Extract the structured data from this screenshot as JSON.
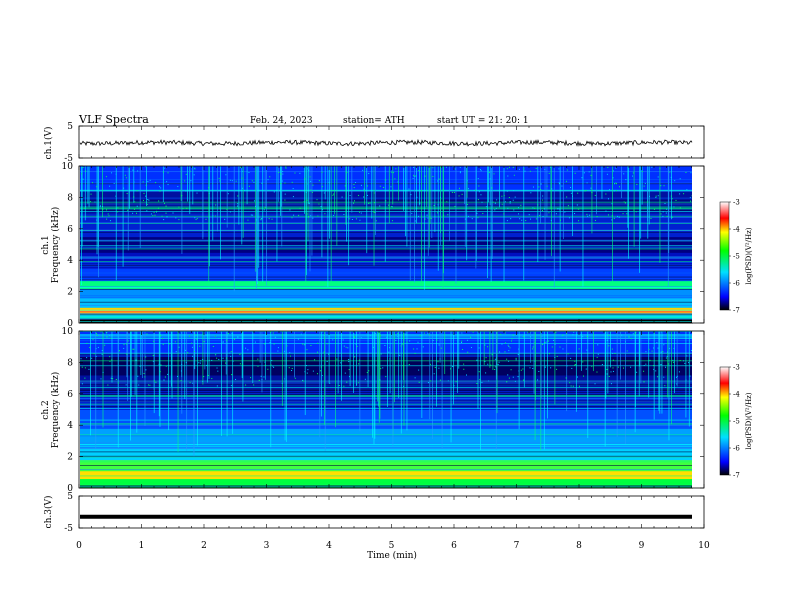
{
  "header": {
    "title": "VLF  Spectra",
    "date": "Feb. 24, 2023",
    "station": "station= ATH",
    "start": "start  UT  =    21: 20: 1"
  },
  "chart_data": [
    {
      "type": "line",
      "ylabel": "ch.1(V)",
      "ylim": [
        -5,
        5
      ],
      "yticks": [
        "5",
        "-5"
      ],
      "xlim": [
        0,
        10
      ],
      "description_values": "trace around -0.3 V with small fluctuations"
    },
    {
      "type": "heatmap",
      "ylabel_lines": [
        "ch.1",
        "Frequency  (kHz)"
      ],
      "ylim": [
        0,
        10
      ],
      "yticks": [
        "0",
        "2",
        "4",
        "6",
        "8",
        "10"
      ],
      "xlim": [
        0,
        10
      ],
      "colorbar": {
        "label": "log(PSD)(V²/Hz)",
        "range": [
          -7,
          -3
        ],
        "ticks": [
          "-3",
          "-4",
          "-5",
          "-6",
          "-7"
        ],
        "colors": [
          "#000000",
          "#0000ff",
          "#00ffff",
          "#00ff00",
          "#ffff00",
          "#ff0000",
          "#ffffff"
        ]
      }
    },
    {
      "type": "heatmap",
      "ylabel_lines": [
        "ch.2",
        "Frequency  (kHz)"
      ],
      "ylim": [
        0,
        10
      ],
      "yticks": [
        "0",
        "2",
        "4",
        "6",
        "8",
        "10"
      ],
      "xlim": [
        0,
        10
      ],
      "colorbar": {
        "label": "log(PSD)(V²/Hz)",
        "range": [
          -7,
          -3
        ],
        "ticks": [
          "-3",
          "-4",
          "-5",
          "-6",
          "-7"
        ],
        "colors": [
          "#000000",
          "#0000ff",
          "#00ffff",
          "#00ff00",
          "#ffff00",
          "#ff0000",
          "#ffffff"
        ]
      }
    },
    {
      "type": "line",
      "ylabel": "ch.3(V)",
      "ylim": [
        -5,
        5
      ],
      "yticks": [
        "5",
        "-5"
      ],
      "xlim": [
        0,
        10
      ],
      "description_values": "flat trace at about -1.5 V"
    }
  ],
  "xaxis": {
    "label": "Time  (min)",
    "ticks": [
      "0",
      "1",
      "2",
      "3",
      "4",
      "5",
      "6",
      "7",
      "8",
      "9",
      "10"
    ],
    "range": [
      0,
      10
    ]
  }
}
